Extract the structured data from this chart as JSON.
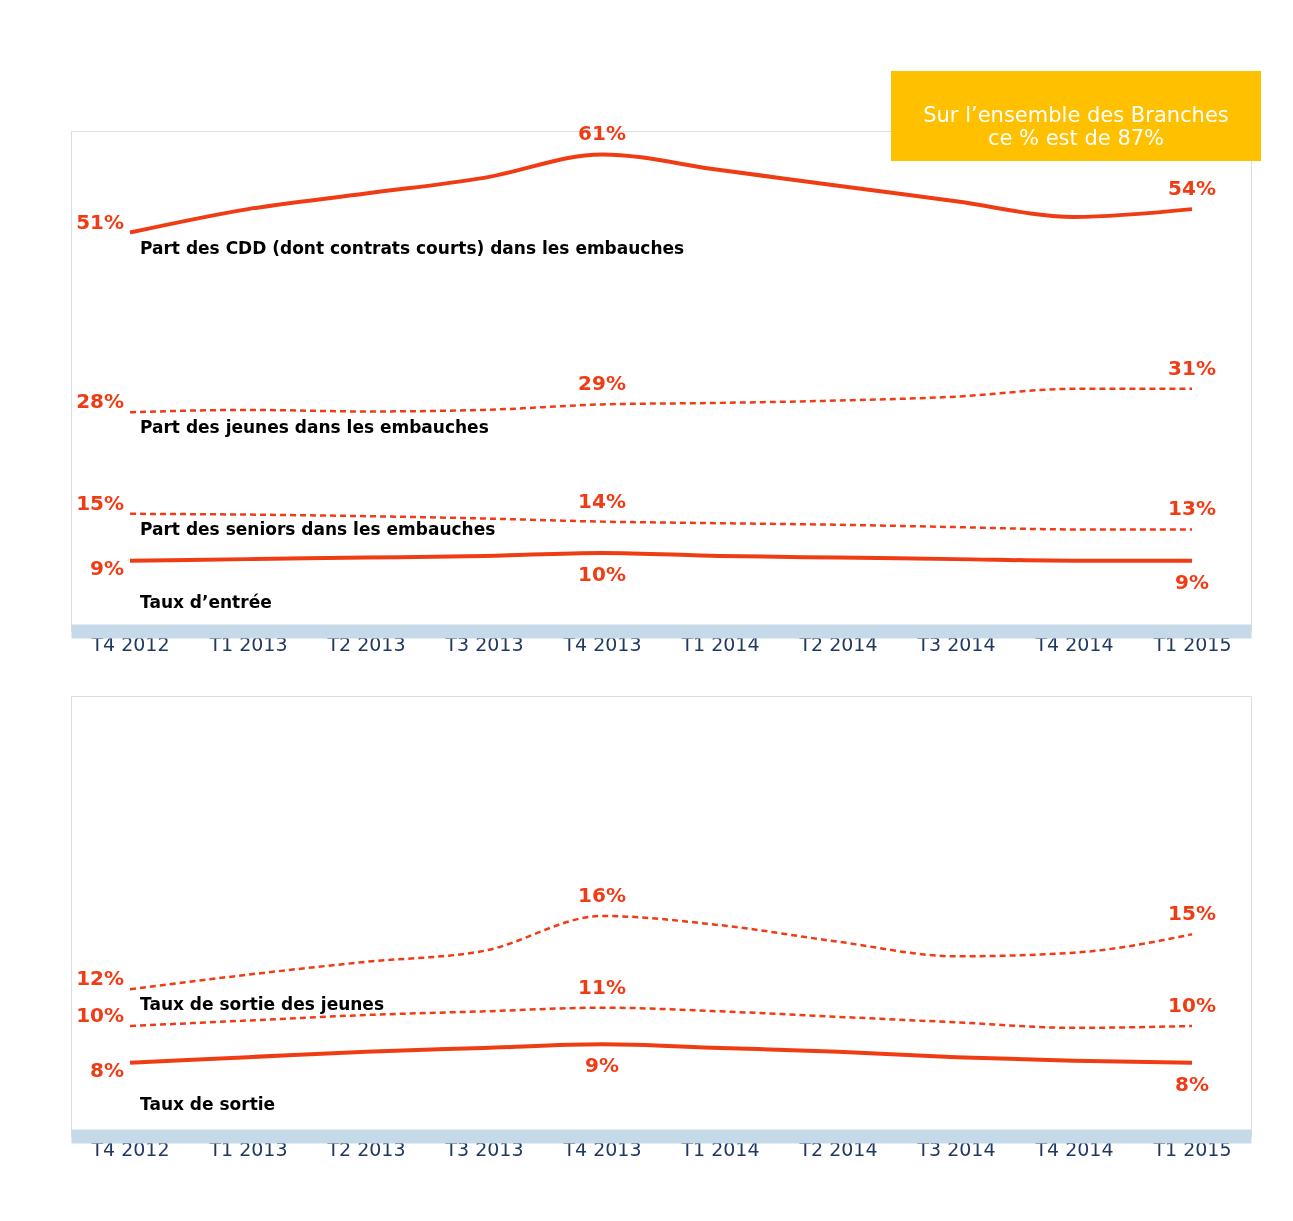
{
  "chart_data": [
    {
      "type": "line",
      "categories": [
        "T4 2012",
        "T1 2013",
        "T2 2013",
        "T3 2013",
        "T4 2013",
        "T1 2014",
        "T2 2014",
        "T3 2014",
        "T4 2014",
        "T1 2015"
      ],
      "ylim": [
        0,
        64
      ],
      "tick_labels": "x",
      "grid": false,
      "annotations": [
        "Sur l’ensemble des Branches\nce % est de 87%"
      ],
      "series": [
        {
          "name": "Part des CDD (dont contrats courts) dans les embauches",
          "color": "#f03c14",
          "line_style": "solid",
          "values": [
            51,
            54,
            56,
            58,
            61,
            59,
            57,
            55,
            53,
            54
          ],
          "value_labels": [
            "51%",
            null,
            null,
            null,
            "61%",
            null,
            null,
            null,
            null,
            "54%"
          ]
        },
        {
          "name": "Part des jeunes dans les embauches",
          "color": "#f03c14",
          "line_style": "dashed",
          "values": [
            28,
            28.3,
            28.1,
            28.3,
            29,
            29.2,
            29.5,
            30,
            31,
            31
          ],
          "value_labels": [
            "28%",
            null,
            null,
            null,
            "29%",
            null,
            null,
            null,
            null,
            "31%"
          ]
        },
        {
          "name": "Part des seniors dans les embauches",
          "color": "#f03c14",
          "line_style": "dashed",
          "values": [
            15,
            14.9,
            14.7,
            14.4,
            14,
            13.8,
            13.6,
            13.3,
            13,
            13
          ],
          "value_labels": [
            "15%",
            null,
            null,
            null,
            "14%",
            null,
            null,
            null,
            null,
            "13%"
          ]
        },
        {
          "name": "Taux d’entrée",
          "color": "#f03c14",
          "line_style": "solid",
          "values": [
            9,
            9.2,
            9.4,
            9.6,
            10,
            9.6,
            9.4,
            9.2,
            9,
            9
          ],
          "value_labels": [
            "9%",
            null,
            null,
            null,
            "10%",
            null,
            null,
            null,
            null,
            "9%"
          ]
        }
      ]
    },
    {
      "type": "line",
      "categories": [
        "T4 2012",
        "T1 2013",
        "T2 2013",
        "T3 2013",
        "T4 2013",
        "T1 2014",
        "T2 2014",
        "T3 2014",
        "T4 2014",
        "T1 2015"
      ],
      "ylim": [
        4,
        28
      ],
      "tick_labels": "x",
      "grid": false,
      "series": [
        {
          "name": "Taux de sortie des jeunes",
          "color": "#f03c14",
          "line_style": "dashed",
          "values": [
            12,
            12.8,
            13.5,
            14.1,
            16,
            15.5,
            14.6,
            13.8,
            14,
            15
          ],
          "value_labels": [
            "12%",
            null,
            null,
            null,
            "16%",
            null,
            null,
            null,
            null,
            "15%"
          ]
        },
        {
          "color": "#f03c14",
          "line_style": "dashed",
          "values": [
            10,
            10.3,
            10.6,
            10.8,
            11,
            10.8,
            10.5,
            10.2,
            9.9,
            10
          ],
          "value_labels": [
            "10%",
            null,
            null,
            null,
            "11%",
            null,
            null,
            null,
            null,
            "10%"
          ]
        },
        {
          "name": "Taux de sortie",
          "color": "#f03c14",
          "line_style": "solid",
          "values": [
            8,
            8.3,
            8.6,
            8.8,
            9,
            8.8,
            8.6,
            8.3,
            8.1,
            8
          ],
          "value_labels": [
            "8%",
            null,
            null,
            null,
            "9%",
            null,
            null,
            null,
            null,
            "8%"
          ]
        }
      ]
    }
  ]
}
